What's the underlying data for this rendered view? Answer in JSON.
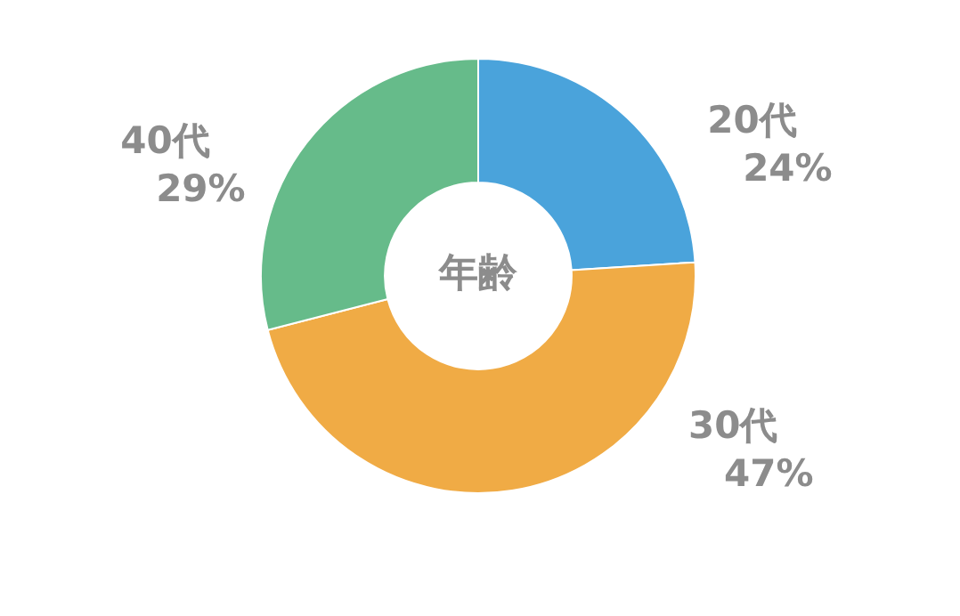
{
  "chart_data": {
    "type": "donut",
    "title": "年齢",
    "categories": [
      "20代",
      "30代",
      "40代"
    ],
    "values": [
      24,
      47,
      29
    ],
    "value_labels": [
      "24%",
      "47%",
      "29%"
    ],
    "colors": [
      "#4aa3db",
      "#f0ab45",
      "#66bb8a"
    ],
    "legend": false
  }
}
